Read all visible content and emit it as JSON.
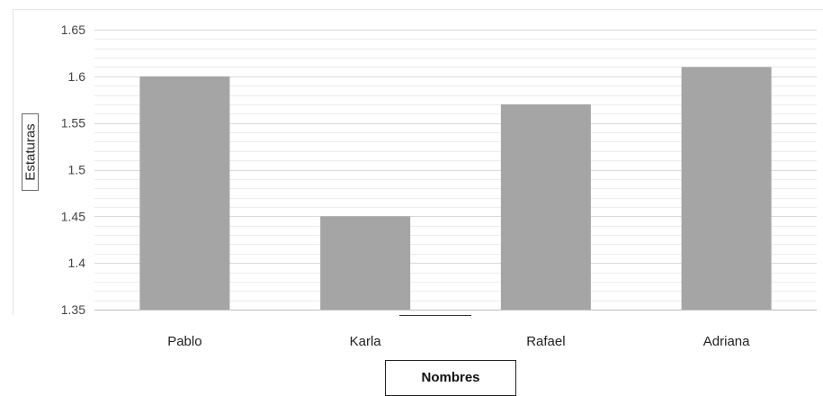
{
  "chart_data": {
    "type": "bar",
    "categories": [
      "Pablo",
      "Karla",
      "Rafael",
      "Adriana"
    ],
    "values": [
      1.6,
      1.45,
      1.57,
      1.61
    ],
    "title": "",
    "xlabel": "Nombres",
    "ylabel": "Estaturas",
    "ylim": [
      1.35,
      1.65
    ],
    "yticks": [
      "1.35",
      "1.4",
      "1.45",
      "1.5",
      "1.55",
      "1.6",
      "1.65"
    ],
    "grid": true,
    "legend": "none",
    "bar_color": "#a5a5a5"
  }
}
